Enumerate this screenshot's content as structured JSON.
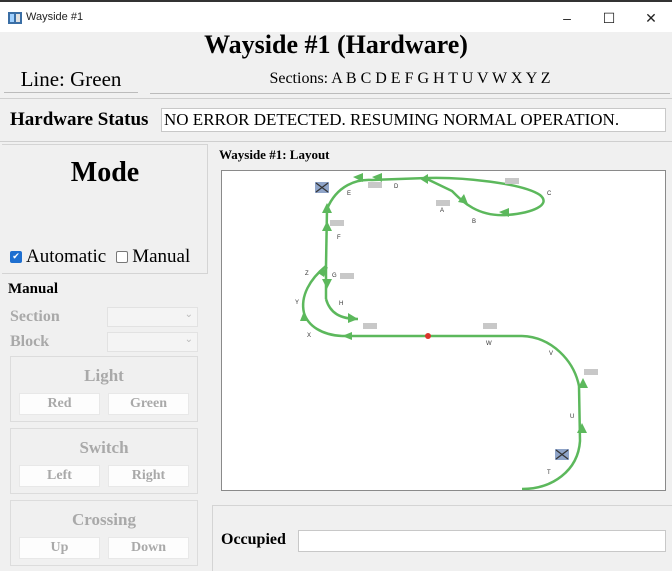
{
  "window": {
    "title": "Wayside #1",
    "controls": {
      "minimize": "–",
      "maximize": "☐",
      "close": "✕"
    }
  },
  "header": {
    "title": "Wayside #1 (Hardware)",
    "line_label": "Line: Green",
    "sections_label": "Sections: A B C D E F G H T U V W X Y Z"
  },
  "hardware": {
    "label": "Hardware Status",
    "status": "NO ERROR DETECTED. RESUMING NORMAL OPERATION."
  },
  "mode": {
    "title": "Mode",
    "automatic_label": "Automatic",
    "automatic_checked": true,
    "manual_label": "Manual",
    "manual_checked": false
  },
  "manual": {
    "label": "Manual",
    "section_label": "Section",
    "section_value": "",
    "block_label": "Block",
    "block_value": "",
    "light": {
      "title": "Light",
      "left": "Red",
      "right": "Green"
    },
    "switch": {
      "title": "Switch",
      "left": "Left",
      "right": "Right"
    },
    "crossing": {
      "title": "Crossing",
      "left": "Up",
      "right": "Down"
    }
  },
  "layout": {
    "label": "Wayside #1: Layout",
    "track_color": "#5cb85c",
    "marker_color": "#d9342b",
    "section_labels": [
      "A",
      "B",
      "C",
      "D",
      "E",
      "F",
      "G",
      "H",
      "T",
      "U",
      "V",
      "W",
      "X",
      "Y",
      "Z"
    ]
  },
  "occupied": {
    "label": "Occupied",
    "value": ""
  }
}
